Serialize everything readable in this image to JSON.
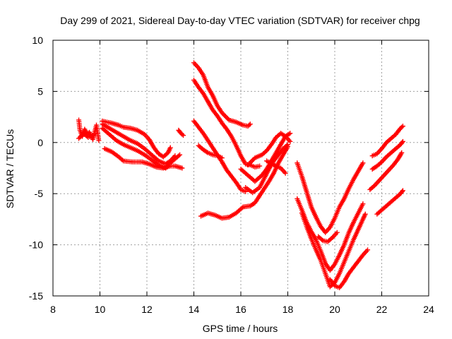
{
  "chart_data": {
    "type": "scatter",
    "title": "Day 299 of 2021, Sidereal Day-to-day VTEC variation (SDTVAR) for receiver chpg",
    "xlabel": "GPS time / hours",
    "ylabel": "SDTVAR / TECUs",
    "xlim": [
      8,
      24
    ],
    "ylim": [
      -15,
      10
    ],
    "xticks": [
      8,
      10,
      12,
      14,
      16,
      18,
      20,
      22,
      24
    ],
    "yticks": [
      -15,
      -10,
      -5,
      0,
      5,
      10
    ],
    "grid": true,
    "marker": "+",
    "series_color": "#ff0000",
    "series": [
      {
        "name": "t1",
        "points": [
          [
            9.1,
            2.2
          ],
          [
            9.15,
            1.2
          ],
          [
            9.25,
            0.6
          ],
          [
            9.35,
            1.3
          ],
          [
            9.45,
            0.8
          ],
          [
            9.55,
            1.0
          ],
          [
            9.7,
            0.3
          ],
          [
            9.85,
            1.7
          ],
          [
            9.95,
            0.2
          ]
        ]
      },
      {
        "name": "t2",
        "points": [
          [
            9.1,
            0.4
          ],
          [
            9.3,
            0.9
          ],
          [
            9.5,
            0.5
          ],
          [
            9.7,
            0.7
          ]
        ]
      },
      {
        "name": "t3",
        "points": [
          [
            10.1,
            2.1
          ],
          [
            10.3,
            2.0
          ],
          [
            10.5,
            1.9
          ],
          [
            10.8,
            1.7
          ],
          [
            11.0,
            1.5
          ],
          [
            11.3,
            1.4
          ],
          [
            11.6,
            1.2
          ],
          [
            11.9,
            0.8
          ],
          [
            12.1,
            0.3
          ],
          [
            12.3,
            -0.5
          ],
          [
            12.5,
            -1.1
          ],
          [
            12.7,
            -1.4
          ],
          [
            12.9,
            -1.0
          ],
          [
            13.0,
            -0.5
          ]
        ]
      },
      {
        "name": "t4",
        "points": [
          [
            10.1,
            1.8
          ],
          [
            10.4,
            1.4
          ],
          [
            10.7,
            1.0
          ],
          [
            11.0,
            0.6
          ],
          [
            11.3,
            0.2
          ],
          [
            11.6,
            -0.1
          ],
          [
            11.9,
            -0.6
          ],
          [
            12.2,
            -1.2
          ],
          [
            12.5,
            -1.8
          ],
          [
            12.8,
            -2.1
          ],
          [
            13.0,
            -1.8
          ],
          [
            13.2,
            -1.3
          ]
        ]
      },
      {
        "name": "t5",
        "points": [
          [
            10.1,
            1.4
          ],
          [
            10.4,
            0.8
          ],
          [
            10.7,
            0.2
          ],
          [
            11.0,
            -0.2
          ],
          [
            11.3,
            -0.5
          ],
          [
            11.6,
            -0.8
          ],
          [
            11.9,
            -1.2
          ],
          [
            12.2,
            -1.7
          ],
          [
            12.5,
            -2.2
          ],
          [
            12.8,
            -2.5
          ],
          [
            13.0,
            -2.0
          ],
          [
            13.2,
            -1.6
          ],
          [
            13.4,
            -1.2
          ]
        ]
      },
      {
        "name": "t6",
        "points": [
          [
            10.2,
            -0.6
          ],
          [
            10.5,
            -0.9
          ],
          [
            10.8,
            -1.4
          ],
          [
            11.0,
            -1.8
          ],
          [
            11.4,
            -1.9
          ],
          [
            11.8,
            -1.9
          ],
          [
            12.1,
            -2.1
          ],
          [
            12.4,
            -2.4
          ],
          [
            12.7,
            -2.5
          ],
          [
            13.0,
            -2.3
          ],
          [
            13.2,
            -2.3
          ],
          [
            13.5,
            -2.5
          ]
        ]
      },
      {
        "name": "t7",
        "points": [
          [
            13.35,
            1.2
          ],
          [
            13.45,
            0.9
          ],
          [
            13.55,
            0.7
          ]
        ]
      },
      {
        "name": "t8",
        "points": [
          [
            14.0,
            7.8
          ],
          [
            14.2,
            7.3
          ],
          [
            14.4,
            6.6
          ],
          [
            14.6,
            5.4
          ],
          [
            14.8,
            4.6
          ],
          [
            15.0,
            3.6
          ],
          [
            15.2,
            2.9
          ],
          [
            15.5,
            2.2
          ],
          [
            15.8,
            2.0
          ],
          [
            16.1,
            1.7
          ],
          [
            16.3,
            1.6
          ],
          [
            16.4,
            1.8
          ]
        ]
      },
      {
        "name": "t9",
        "points": [
          [
            14.0,
            6.1
          ],
          [
            14.2,
            5.4
          ],
          [
            14.4,
            4.8
          ],
          [
            14.6,
            4.0
          ],
          [
            14.8,
            3.2
          ],
          [
            15.0,
            2.6
          ],
          [
            15.2,
            1.9
          ],
          [
            15.4,
            1.3
          ],
          [
            15.6,
            0.6
          ],
          [
            15.8,
            -0.3
          ],
          [
            16.0,
            -1.3
          ],
          [
            16.2,
            -2.1
          ],
          [
            16.4,
            -2.2
          ],
          [
            16.6,
            -2.4
          ],
          [
            16.8,
            -2.3
          ]
        ]
      },
      {
        "name": "t10",
        "points": [
          [
            14.0,
            2.1
          ],
          [
            14.2,
            1.5
          ],
          [
            14.4,
            0.9
          ],
          [
            14.6,
            0.2
          ],
          [
            14.8,
            -0.5
          ],
          [
            15.0,
            -1.2
          ],
          [
            15.2,
            -1.9
          ],
          [
            15.4,
            -2.7
          ],
          [
            15.6,
            -3.3
          ],
          [
            15.8,
            -3.9
          ],
          [
            16.0,
            -4.6
          ],
          [
            16.2,
            -4.8
          ]
        ]
      },
      {
        "name": "t11",
        "points": [
          [
            14.2,
            -0.3
          ],
          [
            14.4,
            -0.7
          ],
          [
            14.6,
            -1.0
          ],
          [
            14.8,
            -1.2
          ],
          [
            15.0,
            -1.3
          ],
          [
            15.2,
            -1.5
          ]
        ]
      },
      {
        "name": "t12",
        "points": [
          [
            14.3,
            -7.2
          ],
          [
            14.6,
            -6.9
          ],
          [
            14.9,
            -7.1
          ],
          [
            15.2,
            -7.4
          ],
          [
            15.5,
            -7.3
          ],
          [
            15.8,
            -6.9
          ],
          [
            16.1,
            -6.3
          ],
          [
            16.4,
            -6.2
          ],
          [
            16.6,
            -5.9
          ],
          [
            16.8,
            -5.2
          ],
          [
            17.0,
            -4.5
          ],
          [
            17.2,
            -3.8
          ],
          [
            17.4,
            -3.0
          ],
          [
            17.6,
            -2.0
          ],
          [
            17.8,
            -1.2
          ],
          [
            18.0,
            -0.4
          ]
        ]
      },
      {
        "name": "t13",
        "points": [
          [
            16.0,
            -2.6
          ],
          [
            16.3,
            -3.2
          ],
          [
            16.6,
            -3.8
          ],
          [
            16.9,
            -3.2
          ],
          [
            17.1,
            -2.6
          ],
          [
            17.3,
            -1.8
          ],
          [
            17.5,
            -1.0
          ],
          [
            17.7,
            -0.2
          ],
          [
            17.9,
            0.6
          ],
          [
            18.1,
            0.9
          ]
        ]
      },
      {
        "name": "t14",
        "points": [
          [
            16.2,
            -4.4
          ],
          [
            16.5,
            -4.9
          ],
          [
            16.8,
            -4.4
          ],
          [
            17.0,
            -3.5
          ],
          [
            17.2,
            -2.6
          ],
          [
            17.4,
            -1.8
          ],
          [
            17.6,
            -1.2
          ],
          [
            17.8,
            -0.6
          ],
          [
            18.0,
            -0.2
          ]
        ]
      },
      {
        "name": "t15",
        "points": [
          [
            16.3,
            -2.2
          ],
          [
            16.6,
            -1.5
          ],
          [
            16.9,
            -1.2
          ],
          [
            17.1,
            -0.8
          ],
          [
            17.3,
            -0.2
          ],
          [
            17.5,
            0.5
          ],
          [
            17.7,
            0.9
          ],
          [
            17.9,
            0.6
          ],
          [
            18.1,
            0.1
          ]
        ]
      },
      {
        "name": "t16",
        "points": [
          [
            17.1,
            -1.8
          ],
          [
            17.4,
            -2.2
          ],
          [
            17.7,
            -2.5
          ],
          [
            17.9,
            -3.0
          ]
        ]
      },
      {
        "name": "t17",
        "points": [
          [
            18.4,
            -2.0
          ],
          [
            18.6,
            -3.3
          ],
          [
            18.8,
            -4.8
          ],
          [
            19.0,
            -6.3
          ],
          [
            19.2,
            -7.3
          ],
          [
            19.4,
            -8.2
          ],
          [
            19.6,
            -8.8
          ],
          [
            19.8,
            -8.3
          ],
          [
            20.0,
            -7.4
          ],
          [
            20.2,
            -6.3
          ],
          [
            20.4,
            -5.5
          ],
          [
            20.6,
            -4.5
          ],
          [
            20.8,
            -3.6
          ],
          [
            21.0,
            -2.8
          ],
          [
            21.2,
            -2.0
          ]
        ]
      },
      {
        "name": "t18",
        "points": [
          [
            18.4,
            -5.5
          ],
          [
            18.6,
            -6.6
          ],
          [
            18.8,
            -7.8
          ],
          [
            19.0,
            -8.7
          ],
          [
            19.2,
            -9.5
          ],
          [
            19.4,
            -10.6
          ],
          [
            19.6,
            -11.8
          ],
          [
            19.8,
            -12.5
          ],
          [
            20.0,
            -11.9
          ],
          [
            20.2,
            -11.0
          ],
          [
            20.4,
            -10.0
          ],
          [
            20.6,
            -8.8
          ],
          [
            20.8,
            -7.8
          ],
          [
            21.0,
            -6.9
          ],
          [
            21.2,
            -6.0
          ]
        ]
      },
      {
        "name": "t19",
        "points": [
          [
            18.6,
            -6.9
          ],
          [
            18.8,
            -8.2
          ],
          [
            19.0,
            -9.4
          ],
          [
            19.2,
            -10.5
          ],
          [
            19.4,
            -11.5
          ],
          [
            19.6,
            -12.8
          ],
          [
            19.8,
            -14.1
          ],
          [
            20.0,
            -13.7
          ],
          [
            20.2,
            -12.8
          ],
          [
            20.4,
            -11.7
          ],
          [
            20.6,
            -10.6
          ],
          [
            20.8,
            -9.5
          ],
          [
            21.0,
            -8.5
          ],
          [
            21.2,
            -7.5
          ],
          [
            21.3,
            -7.0
          ]
        ]
      },
      {
        "name": "t20",
        "points": [
          [
            19.3,
            -9.2
          ],
          [
            19.5,
            -9.6
          ],
          [
            19.7,
            -9.7
          ],
          [
            19.9,
            -9.3
          ],
          [
            20.1,
            -8.8
          ]
        ]
      },
      {
        "name": "t21",
        "points": [
          [
            19.8,
            -13.4
          ],
          [
            20.0,
            -14.0
          ],
          [
            20.2,
            -14.2
          ],
          [
            20.4,
            -13.6
          ],
          [
            20.6,
            -12.8
          ],
          [
            20.8,
            -12.2
          ],
          [
            21.0,
            -11.6
          ],
          [
            21.2,
            -11.0
          ],
          [
            21.4,
            -10.5
          ]
        ]
      },
      {
        "name": "t22",
        "points": [
          [
            21.6,
            -1.3
          ],
          [
            21.8,
            -1.1
          ],
          [
            22.0,
            -0.6
          ],
          [
            22.2,
            0.0
          ],
          [
            22.4,
            0.4
          ],
          [
            22.6,
            0.8
          ],
          [
            22.8,
            1.4
          ],
          [
            22.9,
            1.6
          ]
        ]
      },
      {
        "name": "t23",
        "points": [
          [
            21.6,
            -2.6
          ],
          [
            21.8,
            -2.3
          ],
          [
            22.0,
            -1.9
          ],
          [
            22.2,
            -1.4
          ],
          [
            22.4,
            -1.0
          ],
          [
            22.6,
            -0.6
          ],
          [
            22.8,
            -0.2
          ],
          [
            22.9,
            0.1
          ]
        ]
      },
      {
        "name": "t24",
        "points": [
          [
            21.5,
            -4.6
          ],
          [
            21.7,
            -4.2
          ],
          [
            21.9,
            -3.7
          ],
          [
            22.1,
            -3.2
          ],
          [
            22.3,
            -2.7
          ],
          [
            22.5,
            -2.2
          ],
          [
            22.7,
            -1.6
          ],
          [
            22.85,
            -1.0
          ]
        ]
      },
      {
        "name": "t25",
        "points": [
          [
            21.8,
            -7.0
          ],
          [
            22.0,
            -6.6
          ],
          [
            22.2,
            -6.2
          ],
          [
            22.4,
            -5.8
          ],
          [
            22.6,
            -5.4
          ],
          [
            22.8,
            -5.0
          ],
          [
            22.9,
            -4.7
          ]
        ]
      }
    ]
  }
}
